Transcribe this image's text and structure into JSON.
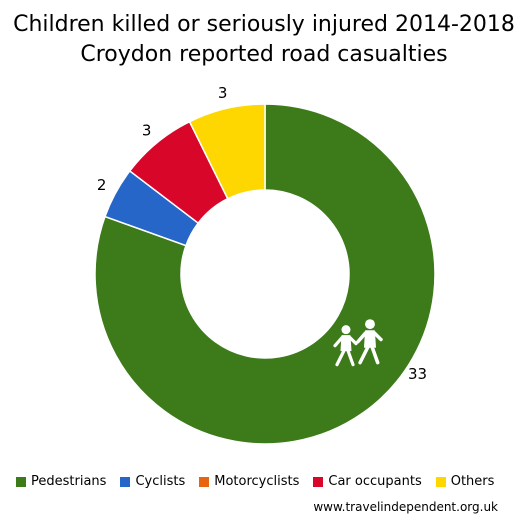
{
  "title": {
    "line1": "Children killed or seriously injured 2014-2018",
    "line2": "Croydon reported road casualties"
  },
  "chart_data": {
    "type": "pie",
    "donut": true,
    "start_angle_deg": 0,
    "direction": "clockwise",
    "series": [
      {
        "name": "Pedestrians",
        "value": 33,
        "color": "#3d7a1a",
        "data_label": "33",
        "icon": "children-crossing-icon"
      },
      {
        "name": "Cyclists",
        "value": 2,
        "color": "#2666c8",
        "data_label": "2"
      },
      {
        "name": "Motorcyclists",
        "value": 0,
        "color": "#e8650f",
        "data_label": ""
      },
      {
        "name": "Car occupants",
        "value": 3,
        "color": "#d8072a",
        "data_label": "3"
      },
      {
        "name": "Others",
        "value": 3,
        "color": "#ffd700",
        "data_label": "3"
      }
    ],
    "legend_position": "bottom"
  },
  "credit": "www.travelindependent.org.uk"
}
